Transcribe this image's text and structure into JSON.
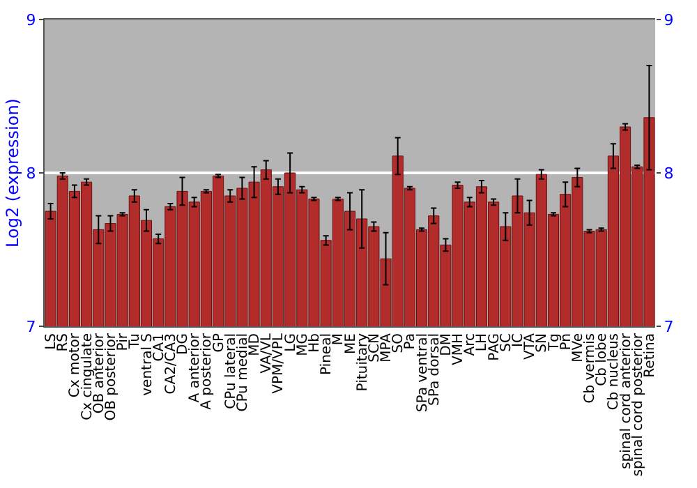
{
  "chart_data": {
    "type": "bar",
    "ylabel": "Log2 (expression)",
    "categories": [
      "LS",
      "RS",
      "Cx motor",
      "Cx cingulate",
      "OB anterior",
      "OB posterior",
      "Pir",
      "Tu",
      "ventral S",
      "CA1",
      "CA2/CA3",
      "DG",
      "A anterior",
      "A posterior",
      "GP",
      "CPu lateral",
      "CPu medial",
      "MD",
      "VA/VL",
      "VPM/VPL",
      "LG",
      "MG",
      "Hb",
      "Pineal",
      "M",
      "ME",
      "Pituitary",
      "SCN",
      "MPA",
      "SO",
      "Pa",
      "SPa ventral",
      "SPa dorsal",
      "DM",
      "VMH",
      "Arc",
      "LH",
      "PAG",
      "SC",
      "IC",
      "VTA",
      "SN",
      "Tg",
      "Pn",
      "MVe",
      "Cb vermis",
      "Cb lobe",
      "Cb nucleus",
      "spinal cord anterior",
      "spinal cord posterior",
      "Retina"
    ],
    "values": [
      7.75,
      7.98,
      7.88,
      7.94,
      7.63,
      7.67,
      7.73,
      7.85,
      7.69,
      7.57,
      7.78,
      7.88,
      7.81,
      7.88,
      7.98,
      7.85,
      7.9,
      7.94,
      8.02,
      7.91,
      8.0,
      7.89,
      7.83,
      7.56,
      7.83,
      7.75,
      7.7,
      7.65,
      7.44,
      8.11,
      7.9,
      7.63,
      7.72,
      7.53,
      7.92,
      7.81,
      7.91,
      7.81,
      7.65,
      7.85,
      7.74,
      7.99,
      7.73,
      7.86,
      7.97,
      7.62,
      7.63,
      8.11,
      8.3,
      8.04,
      8.36
    ],
    "errors": [
      0.05,
      0.02,
      0.04,
      0.02,
      0.09,
      0.05,
      0.01,
      0.04,
      0.07,
      0.03,
      0.02,
      0.09,
      0.03,
      0.01,
      0.01,
      0.04,
      0.07,
      0.1,
      0.06,
      0.05,
      0.13,
      0.02,
      0.01,
      0.03,
      0.01,
      0.12,
      0.19,
      0.03,
      0.17,
      0.12,
      0.01,
      0.01,
      0.05,
      0.04,
      0.02,
      0.03,
      0.04,
      0.02,
      0.09,
      0.11,
      0.08,
      0.03,
      0.01,
      0.08,
      0.06,
      0.01,
      0.01,
      0.08,
      0.02,
      0.01,
      0.34
    ],
    "color": "#b22c2c",
    "ylim": [
      7,
      9
    ],
    "yticks": [
      7,
      8,
      9
    ],
    "y2lim": [
      7,
      9
    ],
    "y2ticks": [
      7,
      8,
      9
    ],
    "grid": "y"
  }
}
